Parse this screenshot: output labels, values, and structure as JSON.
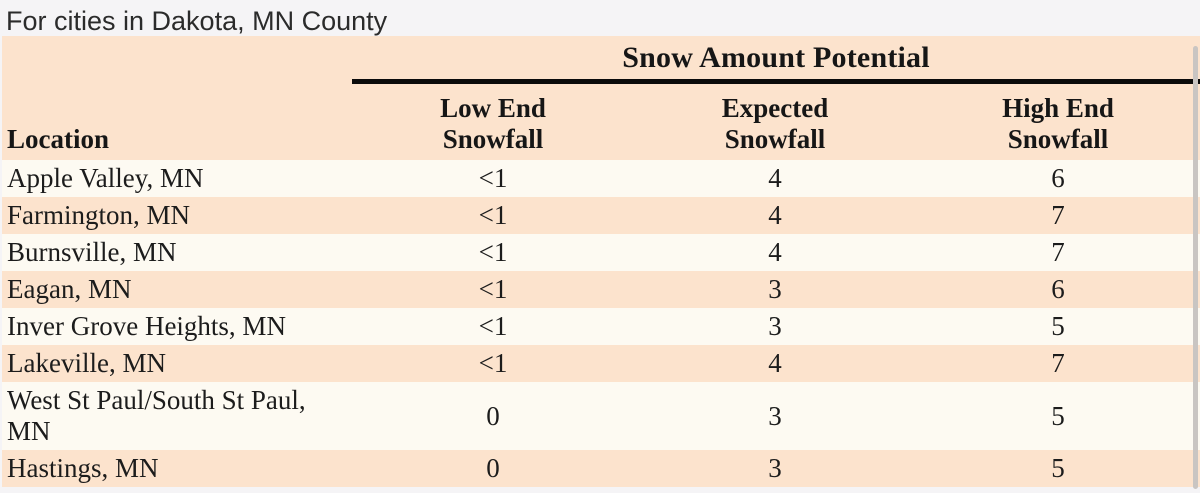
{
  "page": {
    "title": "For cities in Dakota, MN County"
  },
  "table": {
    "group_header": "Snow Amount Potential",
    "columns": {
      "location": "Location",
      "low": "Low End\nSnowfall",
      "expected": "Expected\nSnowfall",
      "high": "High End\nSnowfall"
    },
    "rows": [
      {
        "location": "Apple Valley, MN",
        "low": "<1",
        "expected": "4",
        "high": "6"
      },
      {
        "location": "Farmington, MN",
        "low": "<1",
        "expected": "4",
        "high": "7"
      },
      {
        "location": "Burnsville, MN",
        "low": "<1",
        "expected": "4",
        "high": "7"
      },
      {
        "location": "Eagan, MN",
        "low": "<1",
        "expected": "3",
        "high": "6"
      },
      {
        "location": "Inver Grove Heights, MN",
        "low": "<1",
        "expected": "3",
        "high": "5"
      },
      {
        "location": "Lakeville, MN",
        "low": "<1",
        "expected": "4",
        "high": "7"
      },
      {
        "location": "West St Paul/South St Paul, MN",
        "low": "0",
        "expected": "3",
        "high": "5"
      },
      {
        "location": "Hastings, MN",
        "low": "0",
        "expected": "3",
        "high": "5"
      }
    ]
  },
  "colors": {
    "page_background": "#f5f4f6",
    "row_cream": "#fdfaf2",
    "row_peach": "#fce3cd",
    "header_background": "#fce3cd",
    "header_rule": "#0b0b0b",
    "scrollbar": "#c9c5c2",
    "text": "#1c1c1c"
  }
}
